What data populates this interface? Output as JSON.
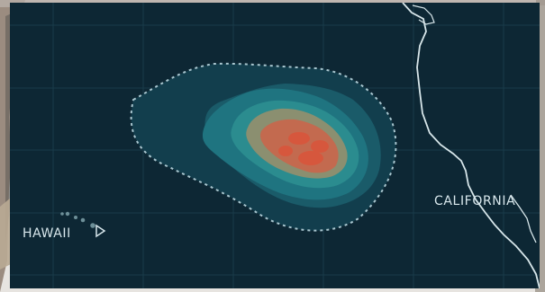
{
  "map": {
    "labels": {
      "hawaii": "HAWAII",
      "california": "CALIFORNIA"
    },
    "icons": {
      "hawaii_marker": "hawaii-arrow-icon"
    },
    "colors": {
      "ocean": "#0d2734",
      "grid": "#1c4050",
      "coastline": "#d7e6ea",
      "outer_boundary": "#a9c6cf",
      "band_1": "#123e4d",
      "band_2": "#1a5b69",
      "band_3": "#1f7480",
      "band_4": "#2b8c8f",
      "band_5": "#8b8f70",
      "core": "#c36a4f",
      "hotspot": "#d8573d"
    }
  }
}
